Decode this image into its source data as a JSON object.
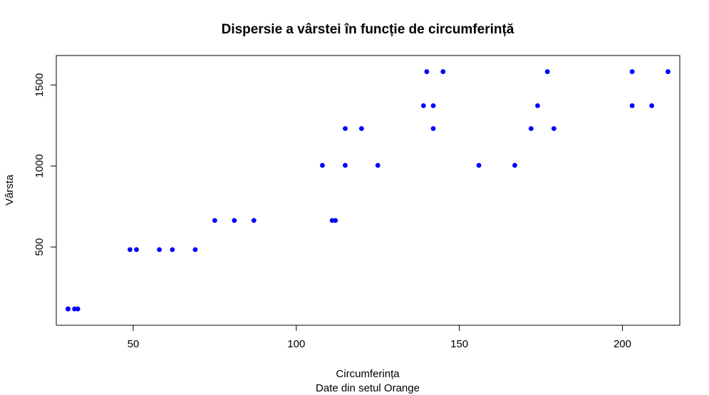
{
  "chart_data": {
    "type": "scatter",
    "title": "Dispersie a vârstei în funcție de circumferință",
    "xlabel": "Circumferința",
    "subtitle": "Date din setul Orange",
    "ylabel": "Vârsta",
    "xlim": [
      26.4,
      217.6
    ],
    "ylim": [
      17.28,
      1681.72
    ],
    "x_ticks": [
      50,
      100,
      150,
      200
    ],
    "y_ticks": [
      500,
      1000,
      1500
    ],
    "grid": false,
    "legend": "none",
    "point_color": "#0000ff",
    "points": [
      {
        "x": 30,
        "y": 118
      },
      {
        "x": 33,
        "y": 118
      },
      {
        "x": 30,
        "y": 118
      },
      {
        "x": 32,
        "y": 118
      },
      {
        "x": 30,
        "y": 118
      },
      {
        "x": 58,
        "y": 484
      },
      {
        "x": 69,
        "y": 484
      },
      {
        "x": 51,
        "y": 484
      },
      {
        "x": 62,
        "y": 484
      },
      {
        "x": 49,
        "y": 484
      },
      {
        "x": 87,
        "y": 664
      },
      {
        "x": 111,
        "y": 664
      },
      {
        "x": 75,
        "y": 664
      },
      {
        "x": 112,
        "y": 664
      },
      {
        "x": 81,
        "y": 664
      },
      {
        "x": 115,
        "y": 1004
      },
      {
        "x": 156,
        "y": 1004
      },
      {
        "x": 108,
        "y": 1004
      },
      {
        "x": 167,
        "y": 1004
      },
      {
        "x": 125,
        "y": 1004
      },
      {
        "x": 120,
        "y": 1231
      },
      {
        "x": 172,
        "y": 1231
      },
      {
        "x": 115,
        "y": 1231
      },
      {
        "x": 179,
        "y": 1231
      },
      {
        "x": 142,
        "y": 1231
      },
      {
        "x": 142,
        "y": 1372
      },
      {
        "x": 203,
        "y": 1372
      },
      {
        "x": 139,
        "y": 1372
      },
      {
        "x": 209,
        "y": 1372
      },
      {
        "x": 174,
        "y": 1372
      },
      {
        "x": 145,
        "y": 1582
      },
      {
        "x": 203,
        "y": 1582
      },
      {
        "x": 140,
        "y": 1582
      },
      {
        "x": 214,
        "y": 1582
      },
      {
        "x": 177,
        "y": 1582
      }
    ]
  }
}
